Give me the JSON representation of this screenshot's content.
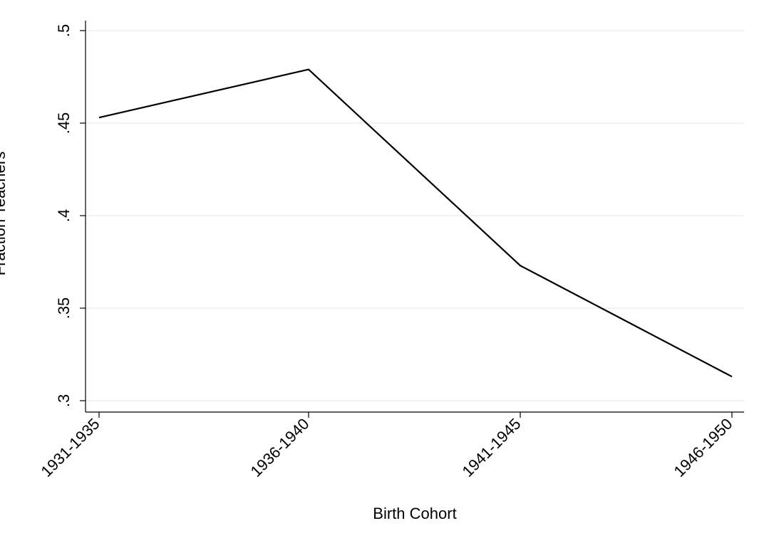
{
  "chart_data": {
    "type": "line",
    "title": "",
    "xlabel": "Birth Cohort",
    "ylabel": "Fraction Teachers",
    "categories": [
      "1931-1935",
      "1936-1940",
      "1941-1945",
      "1946-1950"
    ],
    "series": [
      {
        "values": [
          0.453,
          0.479,
          0.373,
          0.313
        ]
      }
    ],
    "ylim": [
      0.3,
      0.5
    ],
    "yticks": [
      0.3,
      0.35,
      0.4,
      0.45,
      0.5
    ],
    "ytick_labels": [
      ".3",
      ".35",
      ".4",
      ".45",
      ".5"
    ],
    "grid": true,
    "line_color": "#000000",
    "grid_color": "#e8eef3"
  }
}
